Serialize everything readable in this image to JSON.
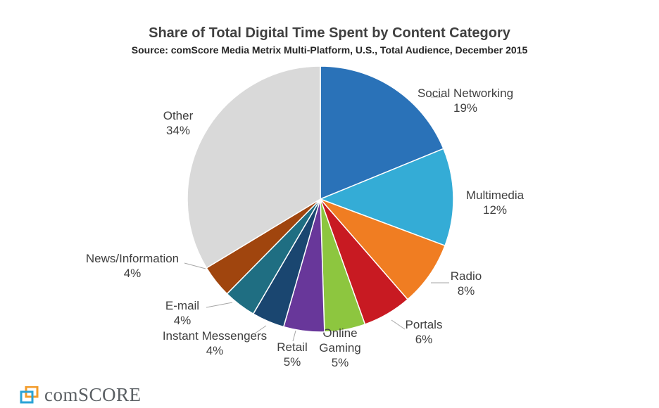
{
  "chart_data": {
    "type": "pie",
    "title": "Share of Total Digital Time Spent by Content Category",
    "subtitle": "Source: comScore Media Metrix Multi-Platform, U.S., Total Audience, December 2015",
    "slices": [
      {
        "label": "Social Networking",
        "value": 19,
        "value_label": "19%",
        "color": "#2a72b8"
      },
      {
        "label": "Multimedia",
        "value": 12,
        "value_label": "12%",
        "color": "#34acd6"
      },
      {
        "label": "Radio",
        "value": 8,
        "value_label": "8%",
        "color": "#f07d22"
      },
      {
        "label": "Portals",
        "value": 6,
        "value_label": "6%",
        "color": "#c81a22"
      },
      {
        "label": "Online Gaming",
        "value": 5,
        "value_label": "5%",
        "color": "#8dc63f"
      },
      {
        "label": "Retail",
        "value": 5,
        "value_label": "5%",
        "color": "#68379a"
      },
      {
        "label": "Instant Messengers",
        "value": 4,
        "value_label": "4%",
        "color": "#1a4670"
      },
      {
        "label": "E-mail",
        "value": 4,
        "value_label": "4%",
        "color": "#1f6e82"
      },
      {
        "label": "News/Information",
        "value": 4,
        "value_label": "4%",
        "color": "#a0450e"
      },
      {
        "label": "Other",
        "value": 34,
        "value_label": "34%",
        "color": "#d9d9d9"
      }
    ]
  },
  "brand": {
    "logo_text": "comSCORE",
    "logo_icon": "comscore-squares-icon"
  }
}
